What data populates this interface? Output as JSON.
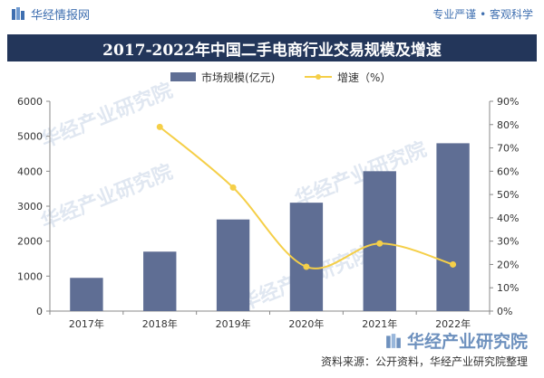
{
  "header": {
    "brand": "华经情报网",
    "tagline": "专业严谨 • 客观科学"
  },
  "watermark": {
    "text": "华经产业研究院"
  },
  "source_note": "资料来源：公开资料，华经产业研究院整理",
  "colors": {
    "title_band": "#23365a",
    "bar": "#5f6e94",
    "line": "#f5cf48",
    "brand": "#3f6fb0"
  },
  "chart_data": {
    "type": "bar",
    "title": "2017-2022年中国二手电商行业交易规模及增速",
    "categories": [
      "2017年",
      "2018年",
      "2019年",
      "2020年",
      "2021年",
      "2022年"
    ],
    "series": [
      {
        "name": "市场规模(亿元)",
        "type": "bar",
        "axis": "left",
        "values": [
          950,
          1700,
          2620,
          3100,
          4000,
          4800
        ]
      },
      {
        "name": "增速（%）",
        "type": "line",
        "axis": "right",
        "values": [
          null,
          79,
          53,
          19,
          29,
          20
        ]
      }
    ],
    "yleft": {
      "min": 0,
      "max": 6000,
      "ticks": [
        0,
        1000,
        2000,
        3000,
        4000,
        5000,
        6000
      ]
    },
    "yright": {
      "min": 0,
      "max": 90,
      "ticks": [
        "0%",
        "10%",
        "20%",
        "30%",
        "40%",
        "50%",
        "60%",
        "70%",
        "80%",
        "90%"
      ]
    },
    "legend_position": "top-center",
    "grid": false
  }
}
